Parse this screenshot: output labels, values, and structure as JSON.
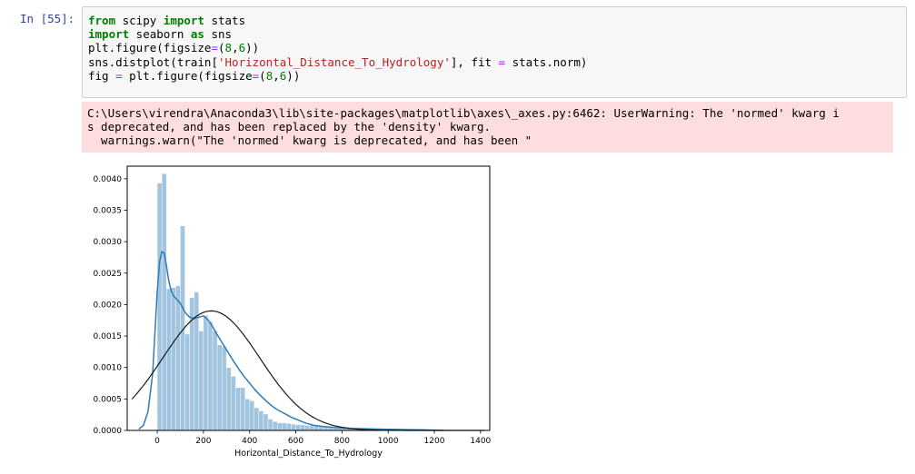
{
  "cell": {
    "prompt": "In [55]:",
    "code_lines": [
      [
        {
          "t": "from",
          "c": "kw"
        },
        {
          "t": " scipy "
        },
        {
          "t": "import",
          "c": "kw"
        },
        {
          "t": " stats"
        }
      ],
      [
        {
          "t": "import",
          "c": "kw"
        },
        {
          "t": " seaborn "
        },
        {
          "t": "as",
          "c": "kw"
        },
        {
          "t": " sns"
        }
      ],
      [
        {
          "t": "plt.figure(figsize"
        },
        {
          "t": "=",
          "c": "op"
        },
        {
          "t": "("
        },
        {
          "t": "8",
          "c": "num"
        },
        {
          "t": ","
        },
        {
          "t": "6",
          "c": "num"
        },
        {
          "t": "))"
        }
      ],
      [
        {
          "t": "sns.distplot(train["
        },
        {
          "t": "'Horizontal_Distance_To_Hydrology'",
          "c": "str"
        },
        {
          "t": "], fit "
        },
        {
          "t": "=",
          "c": "op"
        },
        {
          "t": " stats.norm)"
        }
      ],
      [
        {
          "t": "fig "
        },
        {
          "t": "=",
          "c": "op"
        },
        {
          "t": " plt.figure(figsize"
        },
        {
          "t": "=",
          "c": "op"
        },
        {
          "t": "("
        },
        {
          "t": "8",
          "c": "num"
        },
        {
          "t": ","
        },
        {
          "t": "6",
          "c": "num"
        },
        {
          "t": "))"
        }
      ]
    ]
  },
  "stderr": {
    "lines": [
      "C:\\Users\\virendra\\Anaconda3\\lib\\site-packages\\matplotlib\\axes\\_axes.py:6462: UserWarning: The 'normed' kwarg i",
      "s deprecated, and has been replaced by the 'density' kwarg.",
      "  warnings.warn(\"The 'normed' kwarg is deprecated, and has been \""
    ]
  },
  "colors": {
    "hist": "#a2c4df",
    "kde": "#2f7bb6",
    "fit": "#1a1a1a"
  },
  "chart_data": {
    "type": "bar",
    "xlabel": "Horizontal_Distance_To_Hydrology",
    "ylabel": "",
    "xlim": [
      -130,
      1440
    ],
    "ylim": [
      0,
      0.0042
    ],
    "xticks": [
      0,
      200,
      400,
      600,
      800,
      1000,
      1200,
      1400
    ],
    "yticks": [
      0.0,
      0.0005,
      0.001,
      0.0015,
      0.002,
      0.0025,
      0.003,
      0.0035,
      0.004
    ],
    "ytick_labels": [
      "0.0000",
      "0.0005",
      "0.0010",
      "0.0015",
      "0.0020",
      "0.0025",
      "0.0030",
      "0.0035",
      "0.0040"
    ],
    "histogram": {
      "bin_edges": [
        0,
        20,
        40,
        60,
        80,
        100,
        120,
        140,
        160,
        180,
        200,
        220,
        240,
        260,
        280,
        300,
        320,
        340,
        360,
        380,
        400,
        420,
        440,
        460,
        480,
        500,
        520,
        540,
        560,
        580,
        600,
        620,
        640,
        660,
        680,
        700,
        720,
        740,
        760,
        780,
        800,
        820,
        840,
        860,
        880,
        900,
        920,
        940,
        960,
        980,
        1000,
        1020,
        1040,
        1060,
        1080,
        1100,
        1120,
        1140,
        1160,
        1180,
        1200,
        1220,
        1240,
        1260,
        1280,
        1300,
        1320,
        1340
      ],
      "density": [
        0.00393,
        0.00408,
        0.00225,
        0.00227,
        0.0023,
        0.00325,
        0.00153,
        0.00211,
        0.0022,
        0.00158,
        0.00183,
        0.00173,
        0.00158,
        0.00136,
        0.00133,
        0.001,
        0.00086,
        0.00068,
        0.00068,
        0.0005,
        0.00047,
        0.00036,
        0.00031,
        0.00026,
        0.00018,
        0.00014,
        0.00012,
        0.00012,
        0.00011,
        0.0001,
        9e-05,
        9e-05,
        8e-05,
        8e-05,
        7e-05,
        7e-05,
        6e-05,
        6e-05,
        5e-05,
        5e-05,
        4e-05,
        4e-05,
        4e-05,
        3e-05,
        3e-05,
        3e-05,
        3e-05,
        2e-05,
        2e-05,
        2e-05,
        2e-05,
        2e-05,
        2e-05,
        1e-05,
        1e-05,
        1e-05,
        1e-05,
        1e-05,
        1e-05,
        1e-05,
        1e-05,
        1e-05,
        1e-05,
        1e-05,
        1e-05,
        1e-05,
        1e-05
      ]
    },
    "series": [
      {
        "kind": "kde",
        "x": [
          -80,
          -60,
          -40,
          -20,
          0,
          10,
          20,
          30,
          40,
          50,
          60,
          70,
          80,
          100,
          120,
          140,
          160,
          180,
          200,
          220,
          240,
          260,
          280,
          300,
          320,
          340,
          360,
          380,
          400,
          420,
          440,
          460,
          480,
          500,
          520,
          540,
          560,
          580,
          600,
          620,
          640,
          660,
          680,
          700,
          720,
          760,
          800,
          850,
          900,
          950,
          1000,
          1050,
          1100,
          1150,
          1200,
          1220,
          1240
        ],
        "y": [
          2e-05,
          8e-05,
          0.0003,
          0.0009,
          0.0022,
          0.00268,
          0.00284,
          0.00282,
          0.00262,
          0.00238,
          0.00222,
          0.00214,
          0.0021,
          0.00202,
          0.00188,
          0.0018,
          0.00178,
          0.0018,
          0.00182,
          0.00176,
          0.00165,
          0.00152,
          0.0014,
          0.00128,
          0.00116,
          0.00105,
          0.00094,
          0.00084,
          0.00075,
          0.00066,
          0.00058,
          0.00051,
          0.00044,
          0.00038,
          0.00033,
          0.00029,
          0.00025,
          0.00021,
          0.00018,
          0.00015,
          0.00012,
          0.0001,
          8e-05,
          7e-05,
          6e-05,
          5e-05,
          4e-05,
          3e-05,
          2.6e-05,
          2.2e-05,
          1.8e-05,
          1.4e-05,
          1e-05,
          8e-06,
          4e-06,
          2e-06,
          5e-07
        ]
      },
      {
        "kind": "normal_fit",
        "mean": 234,
        "std": 210,
        "x_range": [
          -110,
          1420
        ]
      }
    ]
  }
}
